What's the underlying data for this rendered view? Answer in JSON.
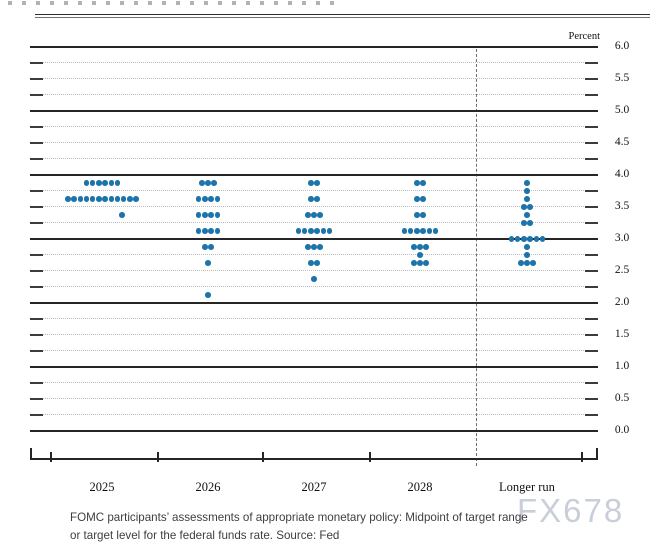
{
  "watermark": "FX678",
  "caption_lines": [
    "FOMC participants’ assessments of appropriate monetary policy: Midpoint of target range",
    "or target level for the federal funds rate. Source: Fed"
  ],
  "chart_data": {
    "type": "scatter",
    "title": "",
    "ylabel": "Percent",
    "xlabel": "",
    "categories": [
      "2025",
      "2026",
      "2027",
      "2028",
      "Longer run"
    ],
    "ylim": [
      0.0,
      6.0
    ],
    "y_tick_step": 0.5,
    "grid": "solid lines at whole percents, dotted lines at quarter percents",
    "legend_position": "none",
    "dot_color": "#1c74ab",
    "y_ticks": [
      {
        "value": 6.0,
        "label": "6.0"
      },
      {
        "value": 5.5,
        "label": "5.5"
      },
      {
        "value": 5.0,
        "label": "5.0"
      },
      {
        "value": 4.5,
        "label": "4.5"
      },
      {
        "value": 4.0,
        "label": "4.0"
      },
      {
        "value": 3.5,
        "label": "3.5"
      },
      {
        "value": 3.0,
        "label": "3.0"
      },
      {
        "value": 2.5,
        "label": "2.5"
      },
      {
        "value": 2.0,
        "label": "2.0"
      },
      {
        "value": 1.5,
        "label": "1.5"
      },
      {
        "value": 1.0,
        "label": "1.0"
      },
      {
        "value": 0.5,
        "label": "0.5"
      },
      {
        "value": 0.0,
        "label": "0.0"
      }
    ],
    "y_gridlines_major": [
      6.0,
      5.0,
      4.0,
      3.0,
      2.0,
      1.0,
      0.0
    ],
    "y_gridlines_minor": [
      5.75,
      5.5,
      5.25,
      4.75,
      4.5,
      4.25,
      3.75,
      3.5,
      3.25,
      2.75,
      2.5,
      2.25,
      1.75,
      1.5,
      1.25,
      0.75,
      0.5,
      0.25
    ],
    "series": [
      {
        "name": "2025",
        "dots": [
          {
            "rate": 3.875,
            "count": 6
          },
          {
            "rate": 3.625,
            "count": 12
          },
          {
            "rate": 3.375,
            "count": 1,
            "dx": 20
          }
        ]
      },
      {
        "name": "2026",
        "dots": [
          {
            "rate": 3.875,
            "count": 3
          },
          {
            "rate": 3.625,
            "count": 4
          },
          {
            "rate": 3.375,
            "count": 4
          },
          {
            "rate": 3.125,
            "count": 4
          },
          {
            "rate": 2.875,
            "count": 2
          },
          {
            "rate": 2.625,
            "count": 1
          },
          {
            "rate": 2.125,
            "count": 1
          }
        ]
      },
      {
        "name": "2027",
        "dots": [
          {
            "rate": 3.875,
            "count": 2
          },
          {
            "rate": 3.625,
            "count": 2
          },
          {
            "rate": 3.375,
            "count": 3
          },
          {
            "rate": 3.125,
            "count": 6
          },
          {
            "rate": 2.875,
            "count": 3
          },
          {
            "rate": 2.625,
            "count": 2
          },
          {
            "rate": 2.375,
            "count": 1
          }
        ]
      },
      {
        "name": "2028",
        "dots": [
          {
            "rate": 3.875,
            "count": 2
          },
          {
            "rate": 3.625,
            "count": 2
          },
          {
            "rate": 3.375,
            "count": 2
          },
          {
            "rate": 3.125,
            "count": 6
          },
          {
            "rate": 2.875,
            "count": 3
          },
          {
            "rate": 2.75,
            "count": 1
          },
          {
            "rate": 2.625,
            "count": 3
          }
        ]
      },
      {
        "name": "Longer run",
        "dots": [
          {
            "rate": 3.875,
            "count": 1
          },
          {
            "rate": 3.75,
            "count": 1
          },
          {
            "rate": 3.625,
            "count": 1
          },
          {
            "rate": 3.5,
            "count": 2
          },
          {
            "rate": 3.375,
            "count": 1
          },
          {
            "rate": 3.25,
            "count": 2
          },
          {
            "rate": 3.0,
            "count": 6
          },
          {
            "rate": 2.875,
            "count": 1
          },
          {
            "rate": 2.75,
            "count": 1
          },
          {
            "rate": 2.625,
            "count": 3
          }
        ]
      }
    ]
  }
}
